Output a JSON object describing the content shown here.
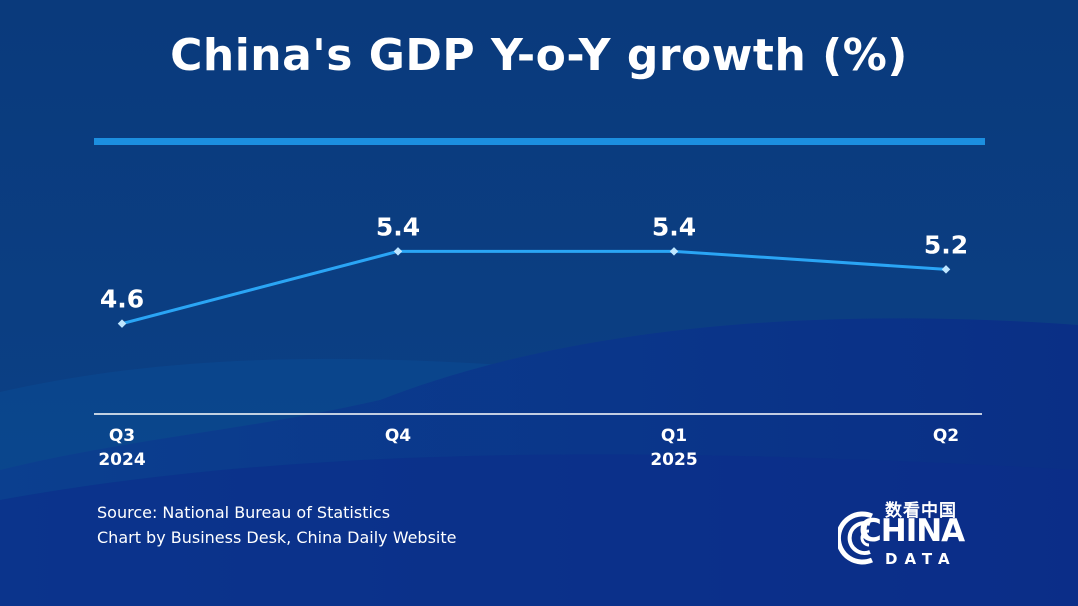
{
  "title": "China's GDP Y-o-Y growth (%)",
  "chart_data": {
    "type": "line",
    "categories": [
      {
        "quarter": "Q3",
        "year": "2024"
      },
      {
        "quarter": "Q4",
        "year": ""
      },
      {
        "quarter": "Q1",
        "year": "2025"
      },
      {
        "quarter": "Q2",
        "year": ""
      }
    ],
    "series": [
      {
        "values": [
          4.6,
          5.4,
          5.4,
          5.2
        ]
      }
    ],
    "data_labels": [
      "4.6",
      "5.4",
      "5.4",
      "5.2"
    ],
    "ylim": [
      3.6,
      6.3
    ],
    "grid": false,
    "legend": "none"
  },
  "source": [
    "Source: National Bureau of Statistics",
    "Chart by Business Desk, China Daily Website"
  ],
  "logo": {
    "chinese": "数看中国",
    "word": "CHINA",
    "sub": "DATA"
  },
  "colors": {
    "background_top": "#0a3b7e",
    "background_bottom": "#0d2f8e",
    "accent": "#1c8fe0",
    "line": "#2aa5f5",
    "text": "#ffffff"
  }
}
